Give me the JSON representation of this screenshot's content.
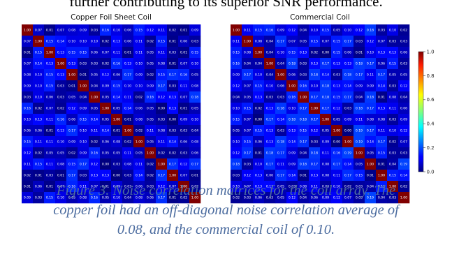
{
  "page": {
    "top_text": "further contributing to its superior SNR performance."
  },
  "caption": {
    "line1": "Figure 3. Noise correlation matrices for the coil array. The",
    "line2": "copper foil had an off-diagonal noise correlation average of",
    "line3": "0.08, and the commercial coil of 0.10."
  },
  "colors": {
    "caption_text": "#4d6da0",
    "cell_text": "#ffffff"
  },
  "chart_data": [
    {
      "type": "heatmap",
      "title": "Copper Foil Sheet Coil",
      "colormap": "jet",
      "vmin": 0.0,
      "vmax": 1.0,
      "grid": false,
      "matrix": [
        [
          1.0,
          0.07,
          0.01,
          0.07,
          0.08,
          0.09,
          0.03,
          0.16,
          0.1,
          0.06,
          0.15,
          0.12,
          0.11,
          0.02,
          0.01,
          0.09
        ],
        [
          0.07,
          1.0,
          0.15,
          0.14,
          0.1,
          0.1,
          0.1,
          0.02,
          0.13,
          0.06,
          0.11,
          0.02,
          0.15,
          0.01,
          0.06,
          0.03
        ],
        [
          0.01,
          0.15,
          1.0,
          0.13,
          0.15,
          0.15,
          0.06,
          0.07,
          0.11,
          0.01,
          0.11,
          0.05,
          0.11,
          0.03,
          0.01,
          0.15
        ],
        [
          0.07,
          0.14,
          0.13,
          1.0,
          0.13,
          0.03,
          0.03,
          0.02,
          0.16,
          0.13,
          0.1,
          0.05,
          0.08,
          0.01,
          0.07,
          0.1
        ],
        [
          0.08,
          0.1,
          0.15,
          0.13,
          1.0,
          0.01,
          0.05,
          0.12,
          0.06,
          0.17,
          0.09,
          0.02,
          0.15,
          0.17,
          0.16,
          0.05
        ],
        [
          0.09,
          0.1,
          0.15,
          0.03,
          0.01,
          1.0,
          0.04,
          0.09,
          0.15,
          0.1,
          0.1,
          0.09,
          0.17,
          0.03,
          0.11,
          0.08
        ],
        [
          0.03,
          0.1,
          0.06,
          0.03,
          0.05,
          0.04,
          1.0,
          0.05,
          0.14,
          0.11,
          0.02,
          0.16,
          0.12,
          0.13,
          0.07,
          0.18
        ],
        [
          0.16,
          0.02,
          0.07,
          0.02,
          0.12,
          0.09,
          0.05,
          1.0,
          0.05,
          0.14,
          0.06,
          0.05,
          0.0,
          0.13,
          0.01,
          0.05
        ],
        [
          0.1,
          0.13,
          0.11,
          0.16,
          0.06,
          0.15,
          0.14,
          0.05,
          1.0,
          0.01,
          0.08,
          0.05,
          0.03,
          0.0,
          0.09,
          0.1
        ],
        [
          0.06,
          0.06,
          0.01,
          0.13,
          0.17,
          0.1,
          0.11,
          0.14,
          0.01,
          1.0,
          0.02,
          0.11,
          0.08,
          0.03,
          0.03,
          0.04
        ],
        [
          0.15,
          0.11,
          0.11,
          0.1,
          0.09,
          0.1,
          0.02,
          0.06,
          0.08,
          0.02,
          1.0,
          0.05,
          0.11,
          0.14,
          0.06,
          0.08
        ],
        [
          0.12,
          0.02,
          0.05,
          0.05,
          0.02,
          0.09,
          0.16,
          0.05,
          0.05,
          0.11,
          0.05,
          1.0,
          0.02,
          0.02,
          0.03,
          0.06
        ],
        [
          0.11,
          0.15,
          0.11,
          0.08,
          0.15,
          0.17,
          0.12,
          0.0,
          0.03,
          0.08,
          0.11,
          0.02,
          1.0,
          0.17,
          0.12,
          0.17
        ],
        [
          0.02,
          0.01,
          0.03,
          0.01,
          0.17,
          0.03,
          0.13,
          0.13,
          0.0,
          0.03,
          0.14,
          0.02,
          0.17,
          1.0,
          0.07,
          0.01
        ],
        [
          0.01,
          0.06,
          0.01,
          0.07,
          0.16,
          0.11,
          0.07,
          0.01,
          0.09,
          0.03,
          0.06,
          0.03,
          0.12,
          0.07,
          1.0,
          0.02
        ],
        [
          0.09,
          0.03,
          0.15,
          0.1,
          0.05,
          0.08,
          0.16,
          0.05,
          0.1,
          0.04,
          0.08,
          0.06,
          0.17,
          0.01,
          0.02,
          1.0
        ]
      ]
    },
    {
      "type": "heatmap",
      "title": "Commercial Coil",
      "colormap": "jet",
      "vmin": 0.0,
      "vmax": 1.0,
      "grid": false,
      "matrix": [
        [
          1.0,
          0.11,
          0.15,
          0.16,
          0.09,
          0.12,
          0.04,
          0.1,
          0.15,
          0.05,
          0.1,
          0.12,
          0.18,
          0.03,
          0.1,
          0.02
        ],
        [
          0.11,
          1.0,
          0.08,
          0.04,
          0.17,
          0.07,
          0.05,
          0.15,
          0.07,
          0.15,
          0.17,
          0.03,
          0.12,
          0.07,
          0.03,
          0.03
        ],
        [
          0.15,
          0.08,
          1.0,
          0.04,
          0.1,
          0.15,
          0.13,
          0.02,
          0.0,
          0.15,
          0.06,
          0.01,
          0.1,
          0.13,
          0.13,
          0.06
        ],
        [
          0.16,
          0.04,
          0.04,
          1.0,
          0.04,
          0.18,
          0.03,
          0.13,
          0.17,
          0.13,
          0.13,
          0.18,
          0.17,
          0.06,
          0.15,
          0.03
        ],
        [
          0.09,
          0.17,
          0.1,
          0.04,
          1.0,
          0.06,
          0.03,
          0.18,
          0.14,
          0.03,
          0.18,
          0.17,
          0.11,
          0.17,
          0.05,
          0.05
        ],
        [
          0.12,
          0.07,
          0.15,
          0.1,
          0.06,
          1.0,
          0.16,
          0.1,
          0.18,
          0.13,
          0.14,
          0.09,
          0.09,
          0.14,
          0.03,
          0.12
        ],
        [
          0.04,
          0.05,
          0.13,
          0.03,
          0.03,
          0.16,
          1.0,
          0.17,
          0.18,
          0.15,
          0.17,
          0.04,
          0.18,
          0.01,
          0.08,
          0.04
        ],
        [
          0.1,
          0.15,
          0.02,
          0.13,
          0.18,
          0.1,
          0.17,
          1.0,
          0.17,
          0.12,
          0.03,
          0.18,
          0.17,
          0.13,
          0.11,
          0.06
        ],
        [
          0.15,
          0.07,
          0.0,
          0.17,
          0.14,
          0.18,
          0.18,
          0.17,
          1.0,
          0.05,
          0.09,
          0.11,
          0.08,
          0.08,
          0.03,
          0.09
        ],
        [
          0.05,
          0.07,
          0.15,
          0.13,
          0.03,
          0.13,
          0.15,
          0.12,
          0.05,
          1.0,
          0.0,
          0.19,
          0.17,
          0.11,
          0.1,
          0.12
        ],
        [
          0.1,
          0.15,
          0.06,
          0.13,
          0.18,
          0.14,
          0.17,
          0.03,
          0.09,
          0.0,
          1.0,
          0.19,
          0.14,
          0.17,
          0.02,
          0.07
        ],
        [
          0.12,
          0.17,
          0.01,
          0.18,
          0.17,
          0.09,
          0.04,
          0.18,
          0.11,
          0.16,
          0.19,
          1.0,
          0.05,
          0.15,
          0.03,
          0.03
        ],
        [
          0.18,
          0.03,
          0.1,
          0.17,
          0.11,
          0.09,
          0.18,
          0.17,
          0.08,
          0.17,
          0.14,
          0.05,
          1.0,
          0.01,
          0.04,
          0.19
        ],
        [
          0.03,
          0.12,
          0.13,
          0.06,
          0.17,
          0.14,
          0.01,
          0.13,
          0.08,
          0.11,
          0.17,
          0.15,
          0.01,
          1.0,
          0.15,
          0.14
        ],
        [
          0.1,
          0.07,
          0.13,
          0.13,
          0.05,
          0.03,
          0.08,
          0.11,
          0.03,
          0.1,
          0.02,
          0.03,
          0.04,
          0.15,
          1.0,
          0.02
        ],
        [
          0.02,
          0.03,
          0.06,
          0.03,
          0.05,
          0.12,
          0.04,
          0.06,
          0.09,
          0.12,
          0.07,
          0.03,
          0.19,
          0.04,
          0.03,
          1.0
        ]
      ]
    }
  ],
  "colorbar": {
    "ticks": [
      "0.0",
      "0.2",
      "0.4",
      "0.6",
      "0.8",
      "1.0"
    ]
  }
}
